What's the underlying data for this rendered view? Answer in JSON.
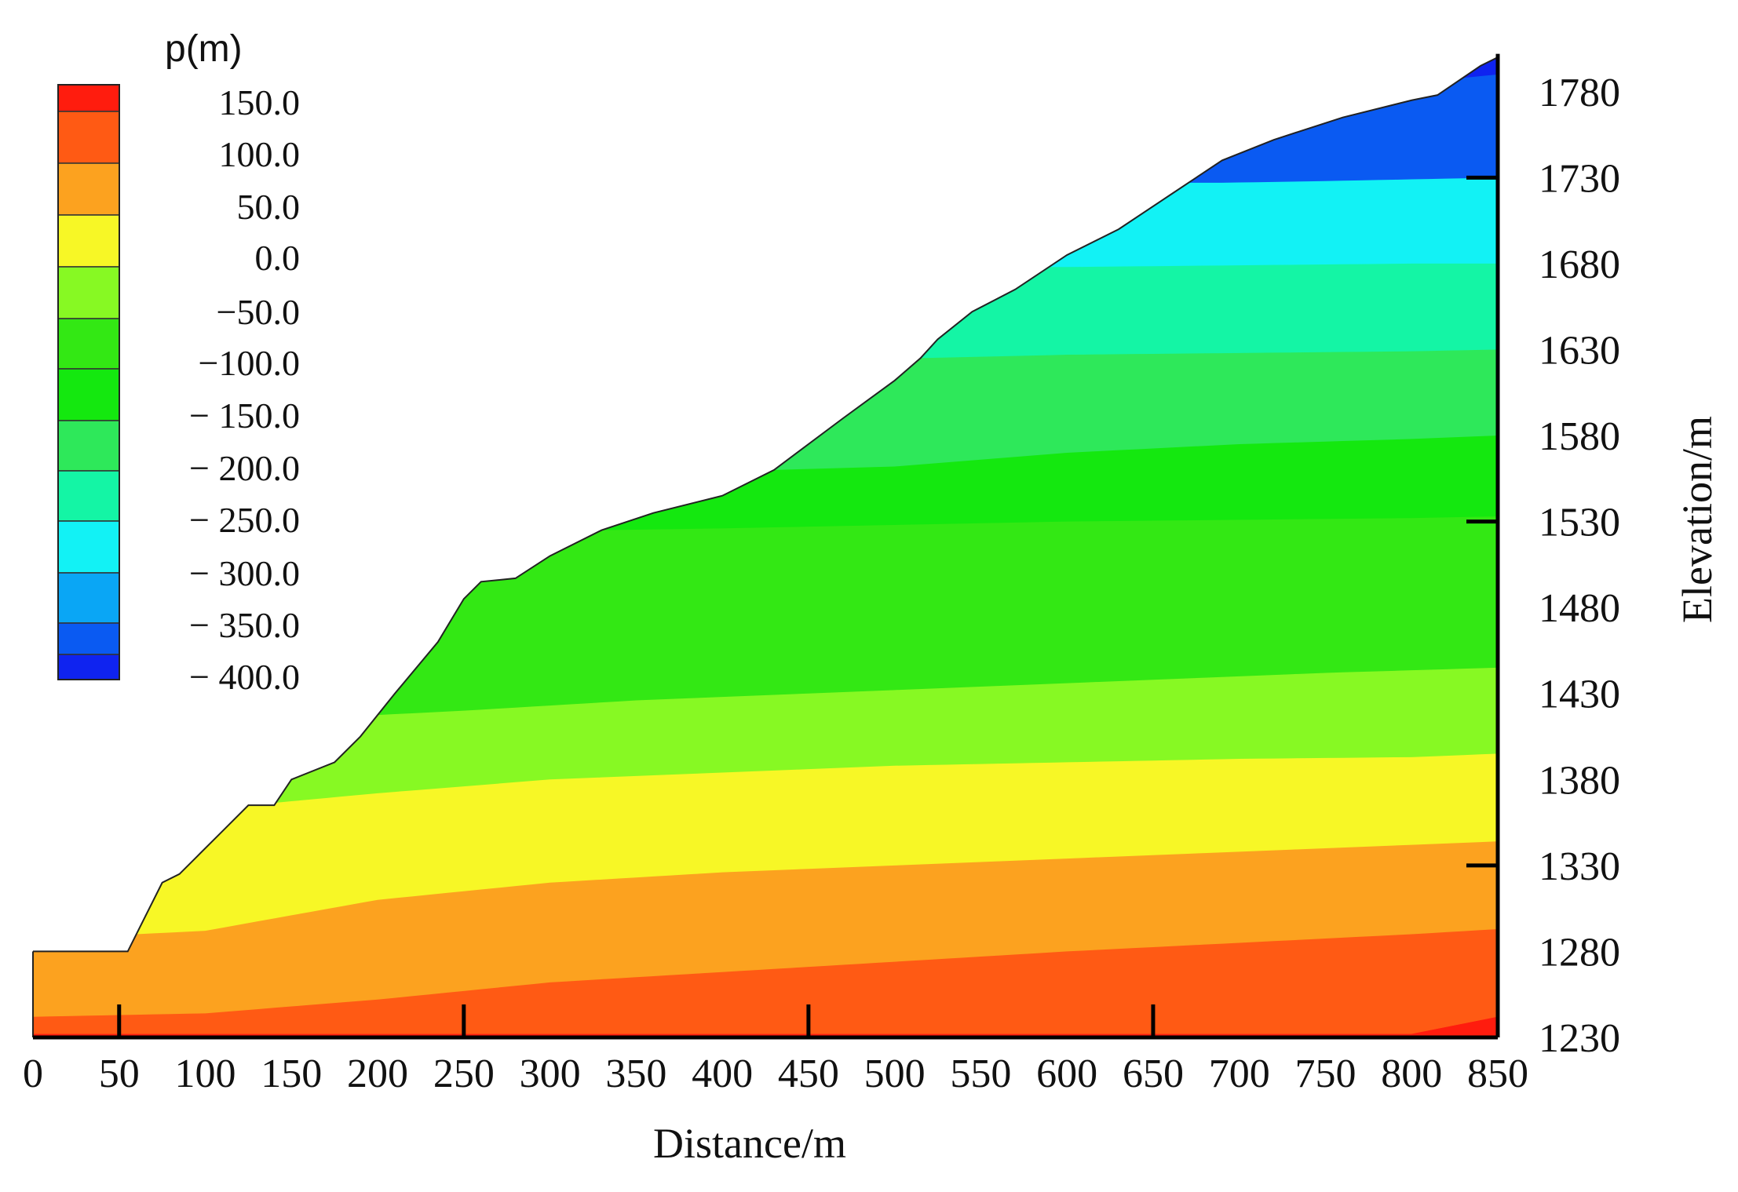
{
  "chart_data": {
    "type": "contour",
    "xlabel": "Distance/m",
    "ylabel": "Elevation/m",
    "xlim": [
      0,
      850
    ],
    "ylim": [
      1230,
      1805
    ],
    "x_ticks": [
      0,
      50,
      100,
      150,
      200,
      250,
      300,
      350,
      400,
      450,
      500,
      550,
      600,
      650,
      700,
      750,
      800,
      850
    ],
    "x_tick_labels": [
      "0",
      "50",
      "100",
      "150",
      "200",
      "250",
      "300",
      "350",
      "400",
      "450",
      "500",
      "550",
      "600",
      "650",
      "700",
      "750",
      "800",
      "850"
    ],
    "y_ticks": [
      1230,
      1280,
      1330,
      1380,
      1430,
      1480,
      1530,
      1580,
      1630,
      1680,
      1730,
      1780
    ],
    "y_tick_labels": [
      "1230",
      "1280",
      "1330",
      "1380",
      "1430",
      "1480",
      "1530",
      "1580",
      "1630",
      "1680",
      "1730",
      "1780"
    ],
    "legend": {
      "title": "p(m)",
      "levels": [
        "150.0",
        "100.0",
        "50.0",
        "0.0",
        "−50.0",
        "−100.0",
        "− 150.0",
        "− 200.0",
        "− 250.0",
        "− 300.0",
        "− 350.0",
        "− 400.0"
      ],
      "colors": [
        "#ff1c0e",
        "#ff5a14",
        "#fca21f",
        "#f7f726",
        "#87f923",
        "#33e814",
        "#14e80f",
        "#2ee85a",
        "#14f5a5",
        "#12f2f5",
        "#0aa6f5",
        "#0a5af2",
        "#0f23f0"
      ]
    },
    "surface_profile": [
      [
        0,
        1280
      ],
      [
        50,
        1280
      ],
      [
        55,
        1280
      ],
      [
        65,
        1300
      ],
      [
        75,
        1320
      ],
      [
        85,
        1325
      ],
      [
        95,
        1335
      ],
      [
        110,
        1350
      ],
      [
        125,
        1365
      ],
      [
        140,
        1365
      ],
      [
        150,
        1380
      ],
      [
        175,
        1390
      ],
      [
        190,
        1405
      ],
      [
        210,
        1430
      ],
      [
        235,
        1460
      ],
      [
        250,
        1485
      ],
      [
        260,
        1495
      ],
      [
        280,
        1497
      ],
      [
        300,
        1510
      ],
      [
        330,
        1525
      ],
      [
        360,
        1535
      ],
      [
        400,
        1545
      ],
      [
        430,
        1560
      ],
      [
        470,
        1590
      ],
      [
        500,
        1612
      ],
      [
        515,
        1625
      ],
      [
        525,
        1636
      ],
      [
        545,
        1652
      ],
      [
        570,
        1665
      ],
      [
        600,
        1685
      ],
      [
        630,
        1700
      ],
      [
        660,
        1720
      ],
      [
        690,
        1740
      ],
      [
        720,
        1752
      ],
      [
        760,
        1765
      ],
      [
        800,
        1775
      ],
      [
        815,
        1778
      ],
      [
        840,
        1795
      ],
      [
        850,
        1800
      ]
    ],
    "contour_bands": [
      {
        "color": "#ff1c0e",
        "level": "150.0",
        "lower_boundary": [
          [
            800,
            1230
          ],
          [
            850,
            1230
          ]
        ],
        "upper_boundary": [
          [
            800,
            1232
          ],
          [
            830,
            1238
          ],
          [
            850,
            1242
          ]
        ]
      },
      {
        "color": "#ff5a14",
        "level": "100.0",
        "upper_boundary": [
          [
            0,
            1242
          ],
          [
            100,
            1244
          ],
          [
            200,
            1252
          ],
          [
            300,
            1262
          ],
          [
            400,
            1268
          ],
          [
            500,
            1274
          ],
          [
            600,
            1280
          ],
          [
            700,
            1285
          ],
          [
            800,
            1290
          ],
          [
            850,
            1293
          ]
        ]
      },
      {
        "color": "#fca21f",
        "level": "50.0",
        "upper_boundary": [
          [
            60,
            1290
          ],
          [
            100,
            1292
          ],
          [
            200,
            1310
          ],
          [
            300,
            1320
          ],
          [
            400,
            1326
          ],
          [
            500,
            1330
          ],
          [
            600,
            1334
          ],
          [
            700,
            1338
          ],
          [
            800,
            1342
          ],
          [
            850,
            1344
          ]
        ]
      },
      {
        "color": "#f7f726",
        "level": "0.0",
        "upper_boundary": [
          [
            125,
            1365
          ],
          [
            200,
            1372
          ],
          [
            300,
            1380
          ],
          [
            400,
            1384
          ],
          [
            500,
            1388
          ],
          [
            600,
            1390
          ],
          [
            700,
            1392
          ],
          [
            800,
            1393
          ],
          [
            850,
            1395
          ]
        ]
      },
      {
        "color": "#87f923",
        "level": "−50.0",
        "upper_boundary": [
          [
            190,
            1417
          ],
          [
            250,
            1420
          ],
          [
            350,
            1426
          ],
          [
            450,
            1430
          ],
          [
            550,
            1434
          ],
          [
            650,
            1438
          ],
          [
            750,
            1442
          ],
          [
            850,
            1445
          ]
        ]
      },
      {
        "color": "#33e814",
        "level": "−100.0",
        "upper_boundary": [
          [
            330,
            1525
          ],
          [
            400,
            1526
          ],
          [
            500,
            1528
          ],
          [
            600,
            1530
          ],
          [
            700,
            1531
          ],
          [
            800,
            1532
          ],
          [
            850,
            1533
          ]
        ]
      },
      {
        "color": "#14e80f",
        "level": "− 150.0",
        "upper_boundary": [
          [
            430,
            1560
          ],
          [
            500,
            1562
          ],
          [
            600,
            1570
          ],
          [
            700,
            1575
          ],
          [
            800,
            1578
          ],
          [
            850,
            1580
          ]
        ]
      },
      {
        "color": "#2ee85a",
        "level": "− 200.0",
        "upper_boundary": [
          [
            515,
            1625
          ],
          [
            600,
            1627
          ],
          [
            700,
            1628
          ],
          [
            800,
            1629
          ],
          [
            850,
            1630
          ]
        ]
      },
      {
        "color": "#14f5a5",
        "level": "− 250.0",
        "upper_boundary": [
          [
            600,
            1678
          ],
          [
            700,
            1679
          ],
          [
            800,
            1680
          ],
          [
            850,
            1680
          ]
        ]
      },
      {
        "color": "#12f2f5",
        "level": "− 300.0",
        "upper_boundary": [
          [
            690,
            1727
          ],
          [
            750,
            1728
          ],
          [
            800,
            1729
          ],
          [
            850,
            1730
          ]
        ]
      },
      {
        "color": "#0a5af2",
        "level": "− 350.0",
        "upper_boundary": [
          [
            830,
            1788
          ],
          [
            850,
            1790
          ]
        ]
      },
      {
        "color": "#0f23f0",
        "level": "− 400.0",
        "upper_boundary": [
          [
            850,
            1805
          ]
        ]
      }
    ]
  }
}
